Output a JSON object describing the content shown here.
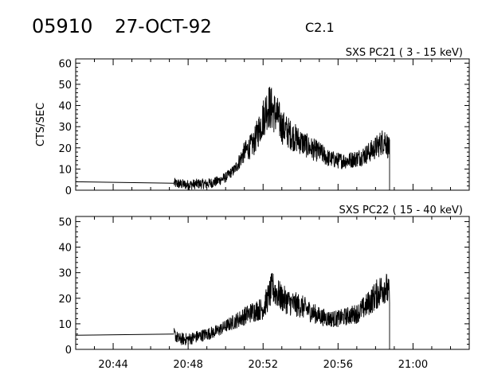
{
  "header": {
    "event_id": "05910",
    "date": "27-OCT-92",
    "goes_class": "C2.1"
  },
  "x_ticks": [
    "20:44",
    "20:48",
    "20:52",
    "20:56",
    "21:00"
  ],
  "chart_data": [
    {
      "type": "line",
      "title": "SXS PC21  (  3 - 15 keV)",
      "xlabel": "",
      "ylabel": "CTS/SEC",
      "xlim": [
        "20:42",
        "21:03"
      ],
      "ylim": [
        0,
        62
      ],
      "yticks": [
        0,
        10,
        20,
        30,
        40,
        50,
        60
      ],
      "grid": false,
      "series": [
        {
          "x": [
            "20:42:00",
            "20:44:00",
            "20:46:00",
            "20:47:15",
            "20:47:30",
            "20:48:00",
            "20:48:30",
            "20:49:00",
            "20:49:30",
            "20:50:00",
            "20:50:15",
            "20:50:30",
            "20:50:45",
            "20:51:00",
            "20:51:30",
            "20:51:45",
            "20:52:00",
            "20:52:15",
            "20:52:30",
            "20:52:45",
            "20:53:00",
            "20:53:30",
            "20:54:00",
            "20:54:30",
            "20:55:00",
            "20:55:30",
            "20:56:00",
            "20:56:30",
            "20:57:00",
            "20:57:30",
            "20:58:00",
            "20:58:30",
            "20:58:45"
          ],
          "values": [
            4,
            3.8,
            3.5,
            3.3,
            3,
            2.5,
            3,
            3,
            4,
            6,
            8,
            10,
            14,
            18,
            22,
            28,
            34,
            40,
            38,
            35,
            30,
            26,
            23,
            20,
            18,
            15,
            14,
            14,
            15,
            17,
            20,
            24,
            19
          ]
        }
      ]
    },
    {
      "type": "line",
      "title": "SXS PC22  ( 15 - 40 keV)",
      "xlabel": "",
      "ylabel": "",
      "xlim": [
        "20:42",
        "21:03"
      ],
      "ylim": [
        0,
        52
      ],
      "yticks": [
        0,
        10,
        20,
        30,
        40,
        50
      ],
      "grid": false,
      "series": [
        {
          "x": [
            "20:42:00",
            "20:44:00",
            "20:46:00",
            "20:47:15",
            "20:47:30",
            "20:48:00",
            "20:48:30",
            "20:49:00",
            "20:49:30",
            "20:50:00",
            "20:50:30",
            "20:51:00",
            "20:51:30",
            "20:52:00",
            "20:52:30",
            "20:52:45",
            "20:53:00",
            "20:53:30",
            "20:54:00",
            "20:54:30",
            "20:55:00",
            "20:55:30",
            "20:56:00",
            "20:56:30",
            "20:57:00",
            "20:57:30",
            "20:58:00",
            "20:58:30",
            "20:58:45"
          ],
          "values": [
            5.5,
            5.8,
            6,
            6,
            4,
            4,
            5,
            6,
            7,
            9,
            11,
            13,
            15,
            16,
            24,
            22,
            20,
            18,
            17,
            15,
            13,
            12,
            12,
            13,
            14,
            17,
            21,
            25,
            21
          ]
        }
      ]
    }
  ]
}
